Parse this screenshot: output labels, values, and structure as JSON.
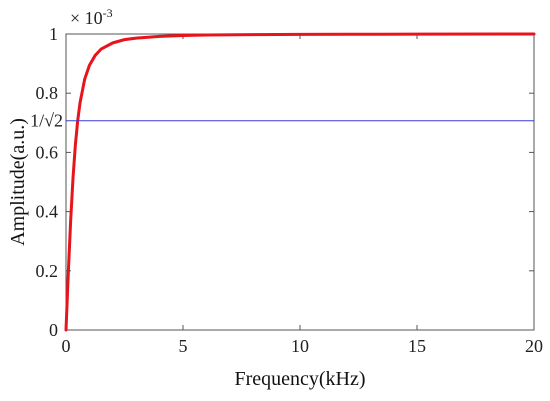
{
  "chart_data": {
    "type": "line",
    "xlabel": "Frequency(kHz)",
    "ylabel": "Amplitude(a.u.)",
    "xlim": [
      0,
      20
    ],
    "ylim": [
      0,
      1
    ],
    "x_ticks": [
      0,
      5,
      10,
      15,
      20
    ],
    "y_ticks": [
      0,
      0.2,
      0.4,
      0.6,
      0.8,
      1
    ],
    "x_tick_labels": [
      "0",
      "5",
      "10",
      "15",
      "20"
    ],
    "y_tick_labels": [
      "0",
      "0.2",
      "0.4",
      "0.6",
      "0.8",
      "1"
    ],
    "y_multiplier_label": "× 10",
    "y_multiplier_exponent": "-3",
    "annotation_label": "1/√2",
    "grid": false,
    "series": [
      {
        "color": "#e8141b",
        "x": [
          0,
          0.1,
          0.2,
          0.3,
          0.4,
          0.5,
          0.6,
          0.8,
          1.0,
          1.25,
          1.5,
          2.0,
          2.5,
          3.0,
          4.0,
          5.0,
          6.0,
          8.0,
          10.0,
          12.0,
          15.0,
          20.0
        ],
        "y": [
          0,
          0.196,
          0.371,
          0.514,
          0.625,
          0.707,
          0.768,
          0.848,
          0.894,
          0.928,
          0.949,
          0.97,
          0.981,
          0.986,
          0.992,
          0.995,
          0.9965,
          0.998,
          0.9988,
          0.9991,
          0.9995,
          1.0
        ]
      },
      {
        "color": "#3a3ad8",
        "x": [
          0,
          20
        ],
        "y": [
          0.7071,
          0.7071
        ]
      }
    ]
  }
}
